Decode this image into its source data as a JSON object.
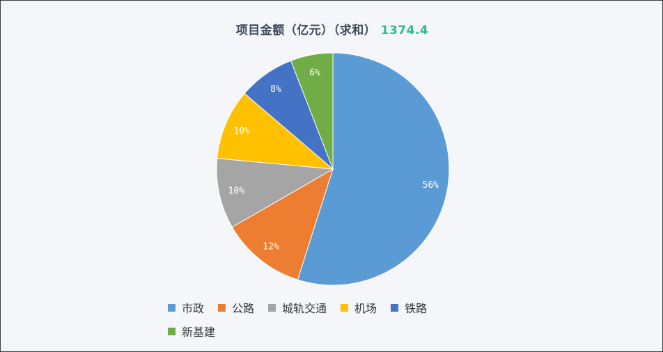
{
  "chart_data": {
    "type": "pie",
    "title": "项目金额（亿元）（求和）",
    "total": "1374.4",
    "categories": [
      "市政",
      "公路",
      "城轨交通",
      "机场",
      "铁路",
      "新基建"
    ],
    "values": [
      56,
      12,
      10,
      10,
      8,
      6
    ],
    "labels": [
      "56%",
      "12%",
      "10%",
      "10%",
      "8%",
      "6%"
    ],
    "colors": [
      "#5b9bd5",
      "#ed7d31",
      "#a5a5a5",
      "#ffc000",
      "#4472c4",
      "#70ad47"
    ],
    "legend_position": "bottom"
  }
}
